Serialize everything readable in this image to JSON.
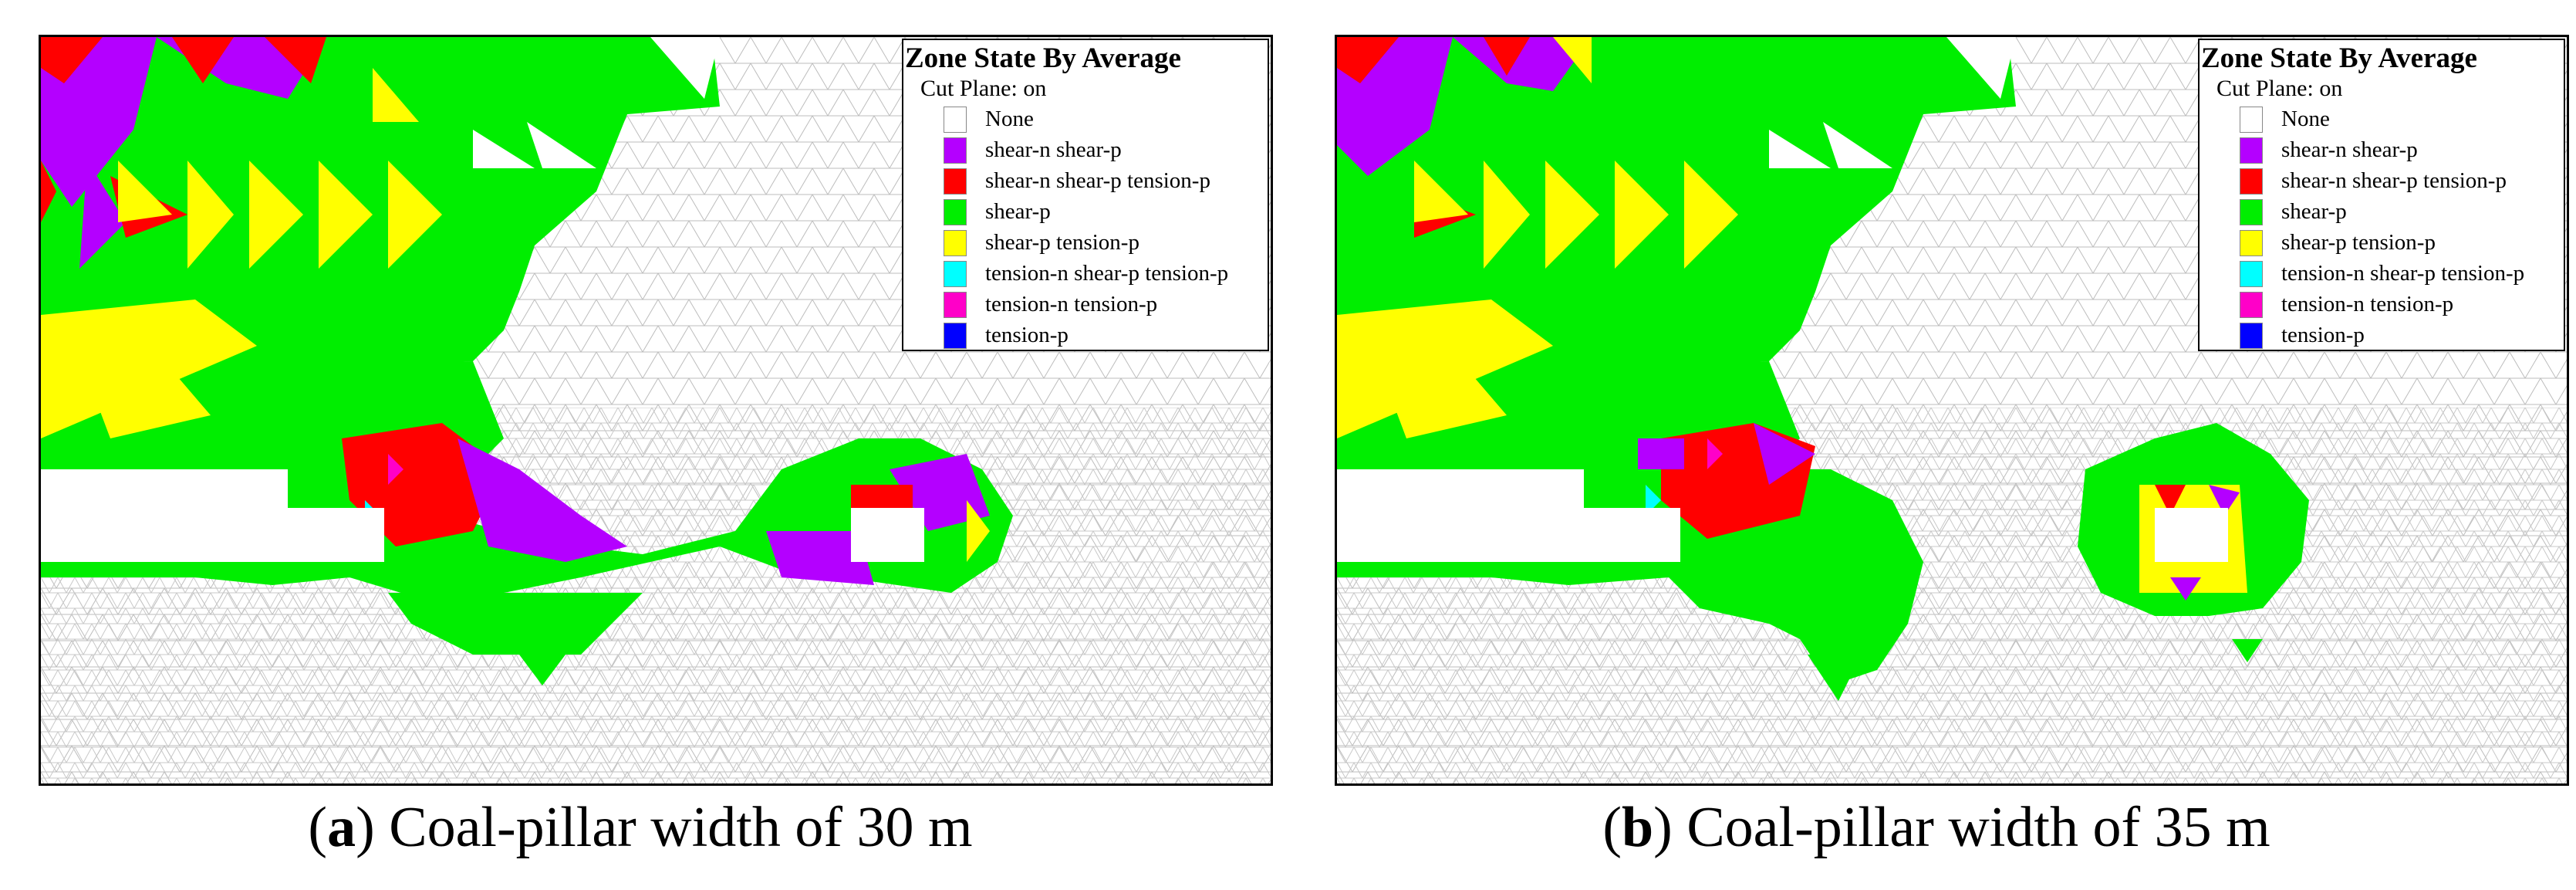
{
  "legend": {
    "title": "Zone State By Average",
    "subtitle": "Cut Plane: on",
    "items": [
      {
        "label": "None",
        "color": "#ffffff"
      },
      {
        "label": "shear-n shear-p",
        "color": "#b400ff"
      },
      {
        "label": "shear-n shear-p tension-p",
        "color": "#ff0000"
      },
      {
        "label": "shear-p",
        "color": "#00ee00"
      },
      {
        "label": "shear-p tension-p",
        "color": "#ffff00"
      },
      {
        "label": "tension-n shear-p tension-p",
        "color": "#00ffff"
      },
      {
        "label": "tension-n tension-p",
        "color": "#ff00c8"
      },
      {
        "label": "tension-p",
        "color": "#0000ff"
      }
    ]
  },
  "panels": [
    {
      "letter": "a",
      "caption_open": "(",
      "caption_close": ")",
      "caption_text": "Coal-pillar width of 30 m",
      "pillar_width_m": 30
    },
    {
      "letter": "b",
      "caption_open": "(",
      "caption_close": ")",
      "caption_text": "Coal-pillar width of 35 m",
      "pillar_width_m": 35
    }
  ]
}
